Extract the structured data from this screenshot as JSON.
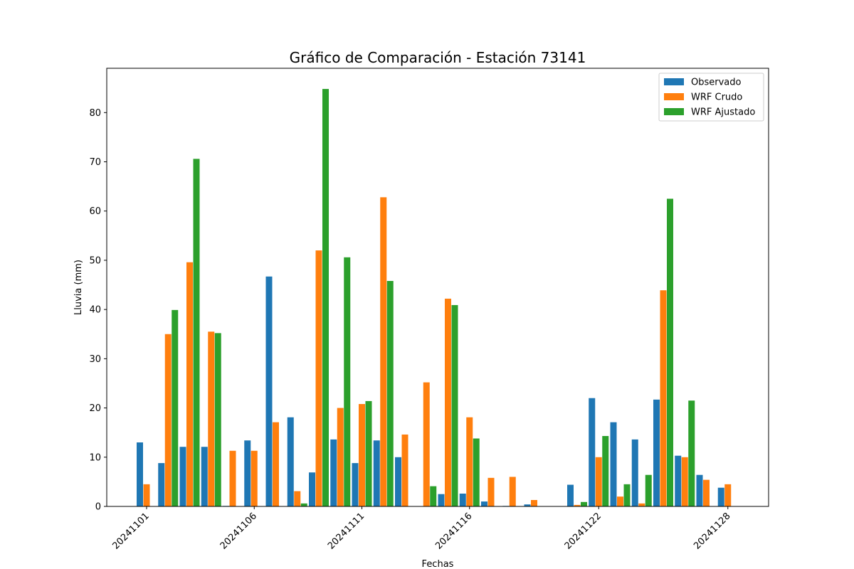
{
  "chart_data": {
    "type": "bar",
    "title": "Gráfico de Comparación - Estación 73141",
    "xlabel": "Fechas",
    "ylabel": "Lluvia (mm)",
    "ylim": [
      0,
      89
    ],
    "yticks": [
      0,
      10,
      20,
      30,
      40,
      50,
      60,
      70,
      80
    ],
    "grid": false,
    "legend_position": "top-right",
    "categories": [
      "20241101",
      "20241102",
      "20241103",
      "20241104",
      "20241105",
      "20241106",
      "20241107",
      "20241108",
      "20241109",
      "20241110",
      "20241111",
      "20241112",
      "20241113",
      "20241114",
      "20241115",
      "20241116",
      "20241117",
      "20241118",
      "20241119",
      "20241120",
      "20241121",
      "20241122",
      "20241123",
      "20241124",
      "20241125",
      "20241126",
      "20241127",
      "20241128",
      "20241129",
      "20241130"
    ],
    "xtick_labels": [
      "20241101",
      "20241106",
      "20241111",
      "20241116",
      "20241122",
      "20241128"
    ],
    "series": [
      {
        "name": "Observado",
        "color": "#1f77b4",
        "values": [
          13.0,
          8.8,
          12.1,
          12.1,
          0.1,
          13.4,
          46.7,
          18.1,
          6.9,
          13.6,
          8.8,
          13.4,
          10.0,
          0.0,
          2.5,
          2.6,
          1.0,
          0.1,
          0.4,
          0.0,
          4.4,
          22.0,
          17.1,
          13.6,
          21.7,
          10.3,
          6.4,
          3.8,
          0.0,
          0.0
        ]
      },
      {
        "name": "WRF Crudo",
        "color": "#ff7f0e",
        "values": [
          4.5,
          35.0,
          49.6,
          35.5,
          11.3,
          11.3,
          17.1,
          3.1,
          52.0,
          20.0,
          20.8,
          62.8,
          14.6,
          25.2,
          42.2,
          18.1,
          5.8,
          6.0,
          1.3,
          0.0,
          0.3,
          10.0,
          2.0,
          0.6,
          43.9,
          10.0,
          5.4,
          4.5,
          0.0,
          0.0
        ]
      },
      {
        "name": "WRF Ajustado",
        "color": "#2ca02c",
        "values": [
          0.0,
          39.9,
          70.6,
          35.2,
          0.0,
          0.0,
          0.0,
          0.6,
          84.8,
          50.6,
          21.4,
          45.8,
          0.0,
          4.1,
          40.9,
          13.8,
          0.0,
          0.0,
          0.0,
          0.0,
          0.9,
          14.3,
          4.5,
          6.4,
          62.5,
          21.5,
          0.0,
          0.0,
          0.0,
          0.0
        ]
      }
    ]
  }
}
